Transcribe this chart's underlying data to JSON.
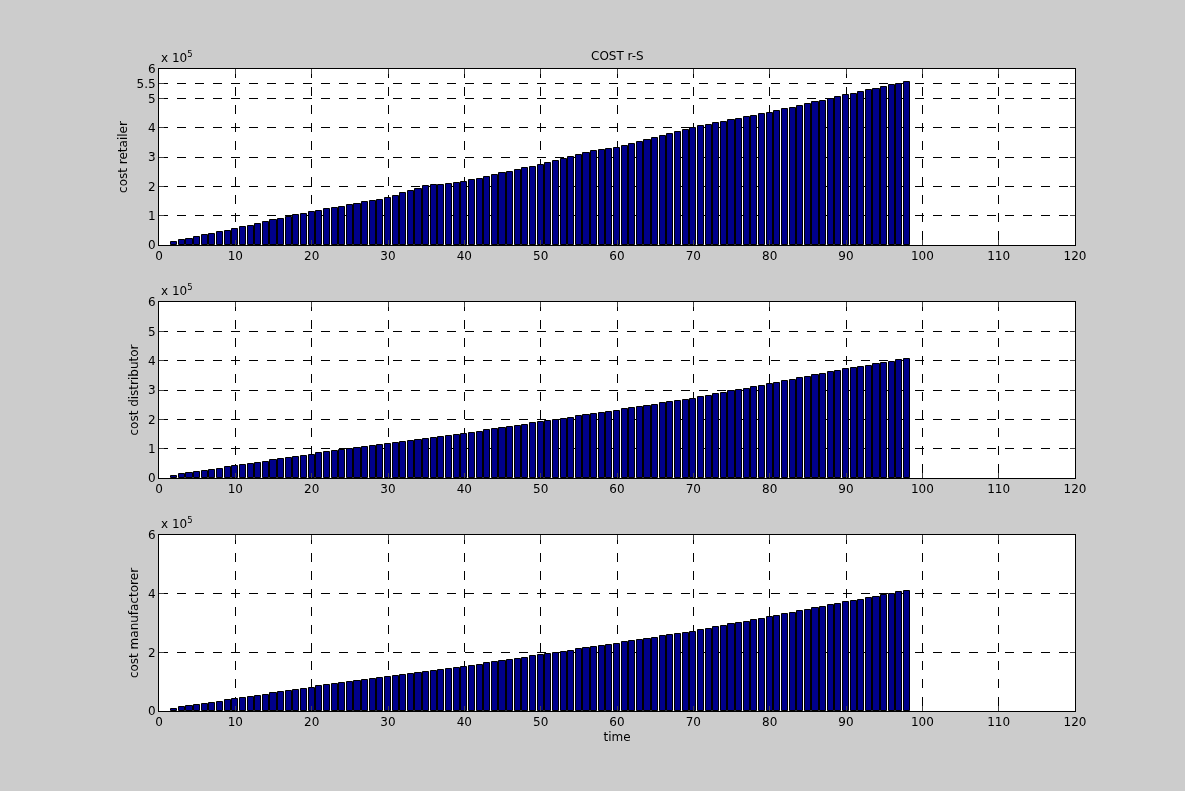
{
  "chart_data": [
    {
      "type": "bar",
      "title": "COST r-S",
      "ylabel": "cost retailer",
      "annotations": [
        "x 10$^{5}$"
      ],
      "x": [
        2,
        3,
        4,
        5,
        6,
        7,
        8,
        9,
        10,
        11,
        12,
        13,
        14,
        15,
        16,
        17,
        18,
        19,
        20,
        21,
        22,
        23,
        24,
        25,
        26,
        27,
        28,
        29,
        30,
        31,
        32,
        33,
        34,
        35,
        36,
        37,
        38,
        39,
        40,
        41,
        42,
        43,
        44,
        45,
        46,
        47,
        48,
        49,
        50,
        51,
        52,
        53,
        54,
        55,
        56,
        57,
        58,
        59,
        60,
        61,
        62,
        63,
        64,
        65,
        66,
        67,
        68,
        69,
        70,
        71,
        72,
        73,
        74,
        75,
        76,
        77,
        78,
        79,
        80,
        81,
        82,
        83,
        84,
        85,
        86,
        87,
        88,
        89,
        90,
        91,
        92,
        93,
        94,
        95,
        96,
        97,
        98
      ],
      "values": [
        0.11,
        0.16,
        0.22,
        0.27,
        0.33,
        0.38,
        0.44,
        0.49,
        0.55,
        0.61,
        0.66,
        0.72,
        0.78,
        0.84,
        0.89,
        0.95,
        1.01,
        1.06,
        1.12,
        1.17,
        1.22,
        1.26,
        1.31,
        1.36,
        1.41,
        1.46,
        1.5,
        1.55,
        1.6,
        1.68,
        1.76,
        1.84,
        1.92,
        2.0,
        2.03,
        2.06,
        2.09,
        2.12,
        2.15,
        2.21,
        2.26,
        2.32,
        2.38,
        2.44,
        2.49,
        2.55,
        2.61,
        2.66,
        2.72,
        2.79,
        2.86,
        2.94,
        3.01,
        3.08,
        3.15,
        3.19,
        3.23,
        3.26,
        3.3,
        3.37,
        3.44,
        3.51,
        3.58,
        3.65,
        3.72,
        3.79,
        3.86,
        3.93,
        4.0,
        4.05,
        4.1,
        4.15,
        4.2,
        4.25,
        4.3,
        4.35,
        4.4,
        4.45,
        4.5,
        4.56,
        4.62,
        4.68,
        4.74,
        4.8,
        4.86,
        4.92,
        4.98,
        5.04,
        5.1,
        5.16,
        5.21,
        5.27,
        5.33,
        5.38,
        5.44,
        5.49,
        5.55
      ],
      "color": "#00008b",
      "xlim": [
        0,
        120
      ],
      "xticks": [
        0,
        10,
        20,
        30,
        40,
        50,
        60,
        70,
        80,
        90,
        100,
        110,
        120
      ],
      "ylim": [
        0,
        6
      ],
      "yticks": [
        0,
        1,
        2,
        3,
        4,
        5,
        5.5,
        6
      ],
      "grid": true
    },
    {
      "type": "bar",
      "ylabel": "cost distributor",
      "annotations": [
        "x 10$^{5}$"
      ],
      "x": [
        2,
        3,
        4,
        5,
        6,
        7,
        8,
        9,
        10,
        11,
        12,
        13,
        14,
        15,
        16,
        17,
        18,
        19,
        20,
        21,
        22,
        23,
        24,
        25,
        26,
        27,
        28,
        29,
        30,
        31,
        32,
        33,
        34,
        35,
        36,
        37,
        38,
        39,
        40,
        41,
        42,
        43,
        44,
        45,
        46,
        47,
        48,
        49,
        50,
        51,
        52,
        53,
        54,
        55,
        56,
        57,
        58,
        59,
        60,
        61,
        62,
        63,
        64,
        65,
        66,
        67,
        68,
        69,
        70,
        71,
        72,
        73,
        74,
        75,
        76,
        77,
        78,
        79,
        80,
        81,
        82,
        83,
        84,
        85,
        86,
        87,
        88,
        89,
        90,
        91,
        92,
        93,
        94,
        95,
        96,
        97,
        98
      ],
      "values": [
        0.08,
        0.12,
        0.16,
        0.2,
        0.24,
        0.28,
        0.32,
        0.36,
        0.4,
        0.44,
        0.48,
        0.52,
        0.56,
        0.6,
        0.64,
        0.68,
        0.72,
        0.76,
        0.8,
        0.84,
        0.87,
        0.91,
        0.94,
        0.98,
        1.01,
        1.05,
        1.08,
        1.12,
        1.15,
        1.19,
        1.22,
        1.26,
        1.29,
        1.33,
        1.36,
        1.4,
        1.43,
        1.47,
        1.5,
        1.54,
        1.58,
        1.62,
        1.66,
        1.7,
        1.74,
        1.78,
        1.82,
        1.86,
        1.9,
        1.94,
        1.98,
        2.02,
        2.06,
        2.1,
        2.14,
        2.18,
        2.22,
        2.26,
        2.3,
        2.34,
        2.38,
        2.42,
        2.46,
        2.5,
        2.54,
        2.58,
        2.62,
        2.66,
        2.7,
        2.75,
        2.8,
        2.85,
        2.9,
        2.95,
        3.0,
        3.05,
        3.1,
        3.15,
        3.2,
        3.25,
        3.3,
        3.35,
        3.4,
        3.45,
        3.5,
        3.55,
        3.6,
        3.65,
        3.7,
        3.74,
        3.79,
        3.83,
        3.88,
        3.92,
        3.96,
        4.01,
        4.05
      ],
      "color": "#00008b",
      "xlim": [
        0,
        120
      ],
      "xticks": [
        0,
        10,
        20,
        30,
        40,
        50,
        60,
        70,
        80,
        90,
        100,
        110,
        120
      ],
      "ylim": [
        0,
        6
      ],
      "yticks": [
        0,
        1,
        2,
        3,
        4,
        5,
        6
      ],
      "grid": true
    },
    {
      "type": "bar",
      "xlabel": "time",
      "ylabel": "cost manufactorer",
      "annotations": [
        "x 10$^{5}$"
      ],
      "x": [
        2,
        3,
        4,
        5,
        6,
        7,
        8,
        9,
        10,
        11,
        12,
        13,
        14,
        15,
        16,
        17,
        18,
        19,
        20,
        21,
        22,
        23,
        24,
        25,
        26,
        27,
        28,
        29,
        30,
        31,
        32,
        33,
        34,
        35,
        36,
        37,
        38,
        39,
        40,
        41,
        42,
        43,
        44,
        45,
        46,
        47,
        48,
        49,
        50,
        51,
        52,
        53,
        54,
        55,
        56,
        57,
        58,
        59,
        60,
        61,
        62,
        63,
        64,
        65,
        66,
        67,
        68,
        69,
        70,
        71,
        72,
        73,
        74,
        75,
        76,
        77,
        78,
        79,
        80,
        81,
        82,
        83,
        84,
        85,
        86,
        87,
        88,
        89,
        90,
        91,
        92,
        93,
        94,
        95,
        96,
        97,
        98
      ],
      "values": [
        0.08,
        0.12,
        0.16,
        0.2,
        0.24,
        0.28,
        0.32,
        0.36,
        0.4,
        0.44,
        0.48,
        0.52,
        0.56,
        0.6,
        0.64,
        0.68,
        0.72,
        0.76,
        0.8,
        0.84,
        0.87,
        0.91,
        0.94,
        0.98,
        1.01,
        1.05,
        1.08,
        1.12,
        1.15,
        1.19,
        1.22,
        1.26,
        1.29,
        1.33,
        1.36,
        1.4,
        1.43,
        1.47,
        1.5,
        1.54,
        1.58,
        1.62,
        1.66,
        1.7,
        1.74,
        1.78,
        1.82,
        1.86,
        1.9,
        1.94,
        1.98,
        2.02,
        2.06,
        2.1,
        2.14,
        2.18,
        2.22,
        2.26,
        2.3,
        2.34,
        2.38,
        2.42,
        2.46,
        2.5,
        2.54,
        2.58,
        2.62,
        2.66,
        2.7,
        2.75,
        2.8,
        2.85,
        2.9,
        2.95,
        3.0,
        3.05,
        3.1,
        3.15,
        3.2,
        3.25,
        3.3,
        3.35,
        3.4,
        3.45,
        3.5,
        3.55,
        3.6,
        3.65,
        3.7,
        3.75,
        3.8,
        3.85,
        3.9,
        3.95,
        4.0,
        4.05,
        4.1
      ],
      "color": "#00008b",
      "xlim": [
        0,
        120
      ],
      "xticks": [
        0,
        10,
        20,
        30,
        40,
        50,
        60,
        70,
        80,
        90,
        100,
        110,
        120
      ],
      "ylim": [
        0,
        6
      ],
      "yticks": [
        0,
        2,
        4,
        6
      ],
      "grid": true
    }
  ]
}
